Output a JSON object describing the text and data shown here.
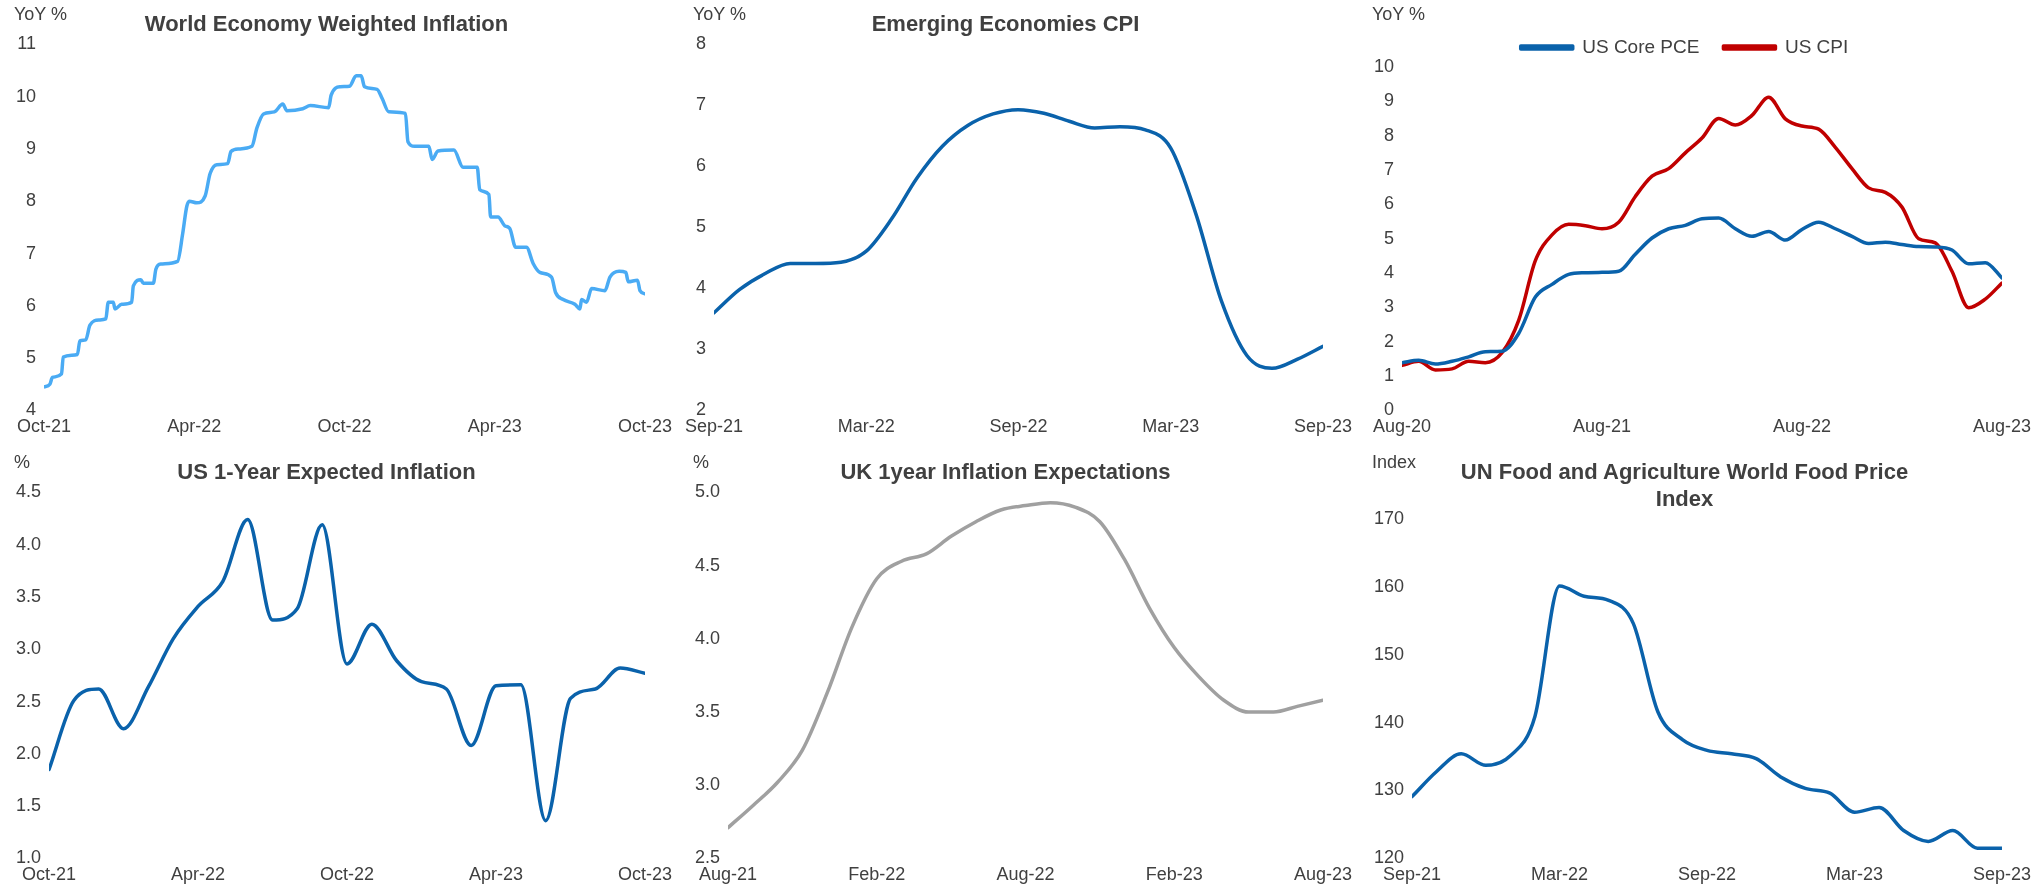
{
  "chart_data": [
    {
      "type": "line",
      "title": "World Economy Weighted Inflation",
      "ylabel": "YoY %",
      "xlim": [
        "2021-10",
        "2023-10"
      ],
      "xticks": [
        {
          "value": "2021-10",
          "label": "Oct-21"
        },
        {
          "value": "2022-04",
          "label": "Apr-22"
        },
        {
          "value": "2022-10",
          "label": "Oct-22"
        },
        {
          "value": "2023-04",
          "label": "Apr-23"
        },
        {
          "value": "2023-10",
          "label": "Oct-23"
        }
      ],
      "ylim": [
        4,
        11
      ],
      "yticks": [
        4,
        5,
        6,
        7,
        8,
        9,
        10,
        11
      ],
      "series": [
        {
          "color": "#4aabf4",
          "x": [
            "2021-10-01",
            "2021-10-08",
            "2021-10-11",
            "2021-10-22",
            "2021-10-24",
            "2021-11-11",
            "2021-11-14",
            "2021-11-21",
            "2021-11-26",
            "2021-12-07",
            "2021-12-15",
            "2021-12-18",
            "2021-12-24",
            "2021-12-26",
            "2022-01-04",
            "2022-01-16",
            "2022-01-18",
            "2022-01-27",
            "2022-01-30",
            "2022-02-12",
            "2022-02-15",
            "2022-02-21",
            "2022-03-11",
            "2022-03-17",
            "2022-03-22",
            "2022-03-25",
            "2022-04-04",
            "2022-04-14",
            "2022-04-20",
            "2022-04-28",
            "2022-05-11",
            "2022-05-15",
            "2022-05-24",
            "2022-06-10",
            "2022-06-16",
            "2022-06-24",
            "2022-07-07",
            "2022-07-17",
            "2022-07-22",
            "2022-08-11",
            "2022-08-20",
            "2022-09-12",
            "2022-09-15",
            "2022-09-26",
            "2022-10-07",
            "2022-10-15",
            "2022-10-21",
            "2022-10-25",
            "2022-11-10",
            "2022-11-16",
            "2022-11-24",
            "2022-12-14",
            "2022-12-17",
            "2022-12-25",
            "2023-01-12",
            "2023-01-16",
            "2023-01-23",
            "2023-02-12",
            "2023-02-23",
            "2023-03-10",
            "2023-03-13",
            "2023-03-24",
            "2023-03-26",
            "2023-04-05",
            "2023-04-13",
            "2023-04-19",
            "2023-04-26",
            "2023-05-09",
            "2023-05-17",
            "2023-05-25",
            "2023-06-09",
            "2023-06-14",
            "2023-06-23",
            "2023-07-07",
            "2023-07-13",
            "2023-07-15",
            "2023-07-21",
            "2023-07-27",
            "2023-08-13",
            "2023-08-19",
            "2023-08-30",
            "2023-09-08",
            "2023-09-11",
            "2023-09-22",
            "2023-09-25",
            "2023-10"
          ],
          "values": [
            4.45,
            4.5,
            4.63,
            4.7,
            5.02,
            5.07,
            5.33,
            5.35,
            5.63,
            5.73,
            5.75,
            6.07,
            6.07,
            5.94,
            6.03,
            6.07,
            6.38,
            6.5,
            6.43,
            6.43,
            6.7,
            6.8,
            6.85,
            7.37,
            7.9,
            8.0,
            7.97,
            8.1,
            8.53,
            8.7,
            8.72,
            8.95,
            9.0,
            9.05,
            9.4,
            9.67,
            9.71,
            9.86,
            9.73,
            9.77,
            9.83,
            9.79,
            10.03,
            10.19,
            10.2,
            10.4,
            10.4,
            10.19,
            10.14,
            9.97,
            9.71,
            9.68,
            9.14,
            9.05,
            9.05,
            8.8,
            8.96,
            8.98,
            8.65,
            8.65,
            8.22,
            8.13,
            7.7,
            7.7,
            7.53,
            7.48,
            7.12,
            7.12,
            6.81,
            6.64,
            6.55,
            6.25,
            6.12,
            6.03,
            5.94,
            6.12,
            6.07,
            6.33,
            6.29,
            6.55,
            6.66,
            6.64,
            6.46,
            6.49,
            6.29,
            6.23
          ]
        }
      ]
    },
    {
      "type": "line",
      "title": "Emerging Economies CPI",
      "ylabel": "YoY %",
      "xlim": [
        "2021-09",
        "2023-09"
      ],
      "xticks": [
        {
          "value": "2021-09",
          "label": "Sep-21"
        },
        {
          "value": "2022-03",
          "label": "Mar-22"
        },
        {
          "value": "2022-09",
          "label": "Sep-22"
        },
        {
          "value": "2023-03",
          "label": "Mar-23"
        },
        {
          "value": "2023-09",
          "label": "Sep-23"
        }
      ],
      "ylim": [
        2,
        8
      ],
      "yticks": [
        2,
        3,
        4,
        5,
        6,
        7,
        8
      ],
      "x": [
        "2021-09",
        "2021-10",
        "2021-11",
        "2021-12",
        "2022-01",
        "2022-02",
        "2022-03",
        "2022-04",
        "2022-05",
        "2022-06",
        "2022-07",
        "2022-08",
        "2022-09",
        "2022-10",
        "2022-11",
        "2022-12",
        "2023-01",
        "2023-02",
        "2023-03",
        "2023-04",
        "2023-05",
        "2023-06",
        "2023-07",
        "2023-08",
        "2023-09"
      ],
      "series": [
        {
          "color": "#0a62ab",
          "values": [
            3.6,
            3.98,
            4.24,
            4.41,
            4.41,
            4.43,
            4.61,
            5.14,
            5.81,
            6.33,
            6.67,
            6.86,
            6.93,
            6.87,
            6.74,
            6.63,
            6.65,
            6.6,
            6.3,
            5.21,
            3.79,
            2.9,
            2.69,
            2.84,
            3.05
          ]
        }
      ]
    },
    {
      "type": "line",
      "ylabel": "YoY %",
      "legend": "top",
      "xlim": [
        "2020-08",
        "2023-08"
      ],
      "xticks": [
        {
          "value": "2020-08",
          "label": "Aug-20"
        },
        {
          "value": "2021-08",
          "label": "Aug-21"
        },
        {
          "value": "2022-08",
          "label": "Aug-22"
        },
        {
          "value": "2023-08",
          "label": "Aug-23"
        }
      ],
      "ylim": [
        0,
        10
      ],
      "yticks": [
        0,
        1,
        2,
        3,
        4,
        5,
        6,
        7,
        8,
        9,
        10
      ],
      "x": [
        "2020-08",
        "2020-09",
        "2020-10",
        "2020-11",
        "2020-12",
        "2021-01",
        "2021-02",
        "2021-03",
        "2021-04",
        "2021-05",
        "2021-06",
        "2021-07",
        "2021-08",
        "2021-09",
        "2021-10",
        "2021-11",
        "2021-12",
        "2022-01",
        "2022-02",
        "2022-03",
        "2022-04",
        "2022-05",
        "2022-06",
        "2022-07",
        "2022-08",
        "2022-09",
        "2022-10",
        "2022-11",
        "2022-12",
        "2023-01",
        "2023-02",
        "2023-03",
        "2023-04",
        "2023-05",
        "2023-06",
        "2023-07",
        "2023-08"
      ],
      "series": [
        {
          "name": "US Core PCE",
          "color": "#0a62ab",
          "values": [
            1.39,
            1.46,
            1.35,
            1.43,
            1.56,
            1.71,
            1.72,
            2.24,
            3.3,
            3.67,
            3.96,
            4.01,
            4.02,
            4.05,
            4.55,
            5.02,
            5.29,
            5.39,
            5.58,
            5.6,
            5.29,
            5.07,
            5.21,
            4.96,
            5.27,
            5.48,
            5.29,
            5.07,
            4.86,
            4.9,
            4.83,
            4.77,
            4.76,
            4.67,
            4.27,
            4.3,
            3.86
          ]
        },
        {
          "name": "US CPI",
          "color": "#c00000",
          "values": [
            1.31,
            1.43,
            1.18,
            1.21,
            1.43,
            1.39,
            1.68,
            2.62,
            4.36,
            5.11,
            5.42,
            5.38,
            5.29,
            5.48,
            6.23,
            6.82,
            7.04,
            7.5,
            7.93,
            8.5,
            8.31,
            8.59,
            9.12,
            8.49,
            8.28,
            8.19,
            7.66,
            7.04,
            6.48,
            6.35,
            5.92,
            5.0,
            4.88,
            4.05,
            2.99,
            3.24,
            3.71
          ]
        }
      ]
    },
    {
      "type": "line",
      "title": "US 1-Year Expected Inflation",
      "ylabel": "%",
      "xlim": [
        "2021-10",
        "2023-10"
      ],
      "xticks": [
        {
          "value": "2021-10",
          "label": "Oct-21"
        },
        {
          "value": "2022-04",
          "label": "Apr-22"
        },
        {
          "value": "2022-10",
          "label": "Oct-22"
        },
        {
          "value": "2023-04",
          "label": "Apr-23"
        },
        {
          "value": "2023-10",
          "label": "Oct-23"
        }
      ],
      "ylim": [
        1,
        4.5
      ],
      "yticks": [
        {
          "value": 1,
          "label": "1.0"
        },
        1.5,
        {
          "value": 2,
          "label": "2.0"
        },
        2.5,
        {
          "value": 3,
          "label": "3.0"
        },
        3.5,
        {
          "value": 4,
          "label": "4.0"
        },
        4.5
      ],
      "x": [
        "2021-10",
        "2021-11",
        "2021-12",
        "2022-01",
        "2022-02",
        "2022-03",
        "2022-04",
        "2022-05",
        "2022-06",
        "2022-07",
        "2022-08",
        "2022-09",
        "2022-10",
        "2022-11",
        "2022-12",
        "2023-01",
        "2023-02",
        "2023-03",
        "2023-04",
        "2023-05",
        "2023-06",
        "2023-07",
        "2023-08",
        "2023-09",
        "2023-10"
      ],
      "series": [
        {
          "color": "#0a62ab",
          "values": [
            1.85,
            2.51,
            2.62,
            2.24,
            2.64,
            3.1,
            3.41,
            3.65,
            4.24,
            3.28,
            3.39,
            4.19,
            2.86,
            3.24,
            2.89,
            2.69,
            2.62,
            2.08,
            2.65,
            2.66,
            1.36,
            2.53,
            2.62,
            2.82,
            2.77
          ]
        }
      ]
    },
    {
      "type": "line",
      "title": "UK 1year Inflation Expectations",
      "ylabel": "%",
      "xlim": [
        "2021-08",
        "2023-08"
      ],
      "xticks": [
        {
          "value": "2021-08",
          "label": "Aug-21"
        },
        {
          "value": "2022-02",
          "label": "Feb-22"
        },
        {
          "value": "2022-08",
          "label": "Aug-22"
        },
        {
          "value": "2023-02",
          "label": "Feb-23"
        },
        {
          "value": "2023-08",
          "label": "Aug-23"
        }
      ],
      "ylim": [
        2.5,
        5
      ],
      "yticks": [
        2.5,
        {
          "value": 3,
          "label": "3.0"
        },
        3.5,
        {
          "value": 4,
          "label": "4.0"
        },
        4.5,
        {
          "value": 5,
          "label": "5.0"
        }
      ],
      "x": [
        "2021-08",
        "2021-09",
        "2021-10",
        "2021-11",
        "2021-12",
        "2022-01",
        "2022-02",
        "2022-03",
        "2022-04",
        "2022-05",
        "2022-06",
        "2022-07",
        "2022-08",
        "2022-09",
        "2022-10",
        "2022-11",
        "2022-12",
        "2023-01",
        "2023-02",
        "2023-03",
        "2023-04",
        "2023-05",
        "2023-06",
        "2023-07",
        "2023-08"
      ],
      "series": [
        {
          "color": "#a0a0a0",
          "values": [
            2.71,
            2.86,
            3.02,
            3.24,
            3.63,
            4.08,
            4.41,
            4.53,
            4.58,
            4.7,
            4.8,
            4.88,
            4.91,
            4.93,
            4.9,
            4.8,
            4.54,
            4.21,
            3.94,
            3.74,
            3.58,
            3.5,
            3.5,
            3.54,
            3.58
          ]
        }
      ]
    },
    {
      "type": "line",
      "title": "UN Food and Agriculture World Food Price Index",
      "ylabel": "Index",
      "xlim": [
        "2021-09",
        "2023-09"
      ],
      "xticks": [
        {
          "value": "2021-09",
          "label": "Sep-21"
        },
        {
          "value": "2022-03",
          "label": "Mar-22"
        },
        {
          "value": "2022-09",
          "label": "Sep-22"
        },
        {
          "value": "2023-03",
          "label": "Mar-23"
        },
        {
          "value": "2023-09",
          "label": "Sep-23"
        }
      ],
      "ylim": [
        120,
        170
      ],
      "yticks": [
        120,
        130,
        140,
        150,
        160,
        170
      ],
      "x": [
        "2021-09",
        "2021-10",
        "2021-11",
        "2021-12",
        "2022-01",
        "2022-02",
        "2022-03",
        "2022-04",
        "2022-05",
        "2022-06",
        "2022-07",
        "2022-08",
        "2022-09",
        "2022-10",
        "2022-11",
        "2022-12",
        "2023-01",
        "2023-02",
        "2023-03",
        "2023-04",
        "2023-05",
        "2023-06",
        "2023-07",
        "2023-08",
        "2023-09"
      ],
      "series": [
        {
          "color": "#0a62ab",
          "values": [
            129.1,
            132.8,
            135.4,
            133.7,
            135.1,
            140.9,
            160.1,
            158.6,
            158.0,
            154.6,
            141.6,
            137.5,
            135.9,
            135.4,
            134.7,
            132.0,
            130.3,
            129.6,
            126.8,
            127.5,
            124.1,
            122.5,
            124.1,
            121.5,
            121.5
          ]
        }
      ]
    }
  ]
}
